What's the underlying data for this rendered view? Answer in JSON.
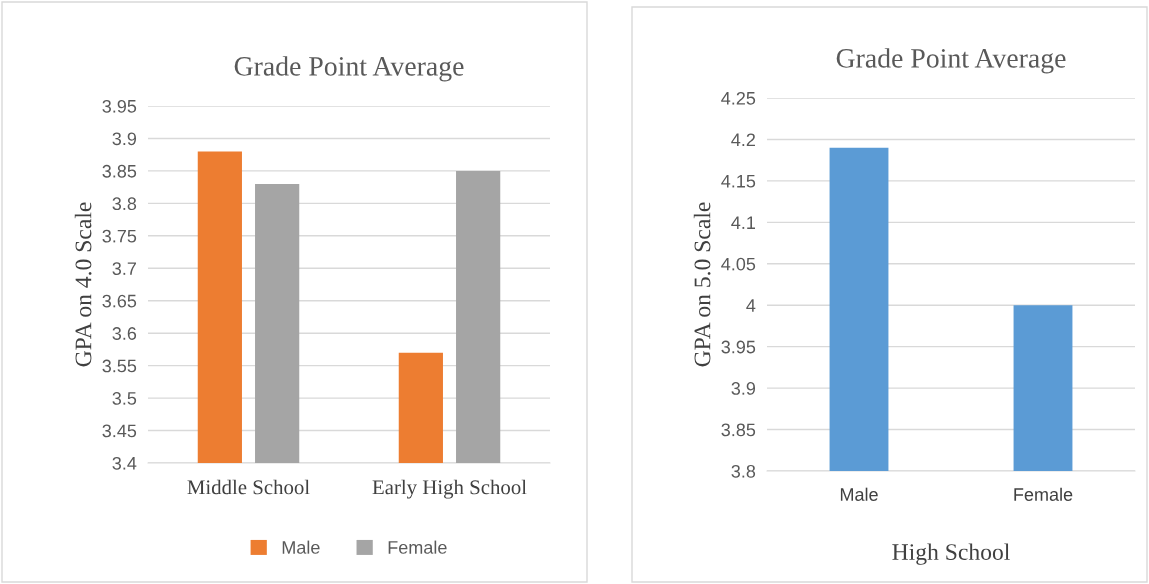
{
  "chart_data": [
    {
      "type": "bar",
      "title": "Grade Point Average",
      "ylabel": "GPA on 4.0 Scale",
      "categories": [
        "Middle School",
        "Early High School"
      ],
      "series": [
        {
          "name": "Male",
          "color": "#ed7d31",
          "values": [
            3.88,
            3.57
          ]
        },
        {
          "name": "Female",
          "color": "#a5a5a5",
          "values": [
            3.83,
            3.85
          ]
        }
      ],
      "ylim": [
        3.4,
        3.95
      ],
      "yticks": [
        3.4,
        3.45,
        3.5,
        3.55,
        3.6,
        3.65,
        3.7,
        3.75,
        3.8,
        3.85,
        3.9,
        3.95
      ],
      "grid": "y",
      "legend": "bottom"
    },
    {
      "type": "bar",
      "title": "Grade Point Average",
      "ylabel": "GPA on 5.0 Scale",
      "xlabel": "High School",
      "categories": [
        "Male",
        "Female"
      ],
      "values": [
        4.19,
        4.0
      ],
      "color": "#5b9bd5",
      "ylim": [
        3.8,
        4.25
      ],
      "yticks": [
        3.8,
        3.85,
        3.9,
        3.95,
        4,
        4.05,
        4.1,
        4.15,
        4.2,
        4.25
      ],
      "grid": "y"
    }
  ]
}
